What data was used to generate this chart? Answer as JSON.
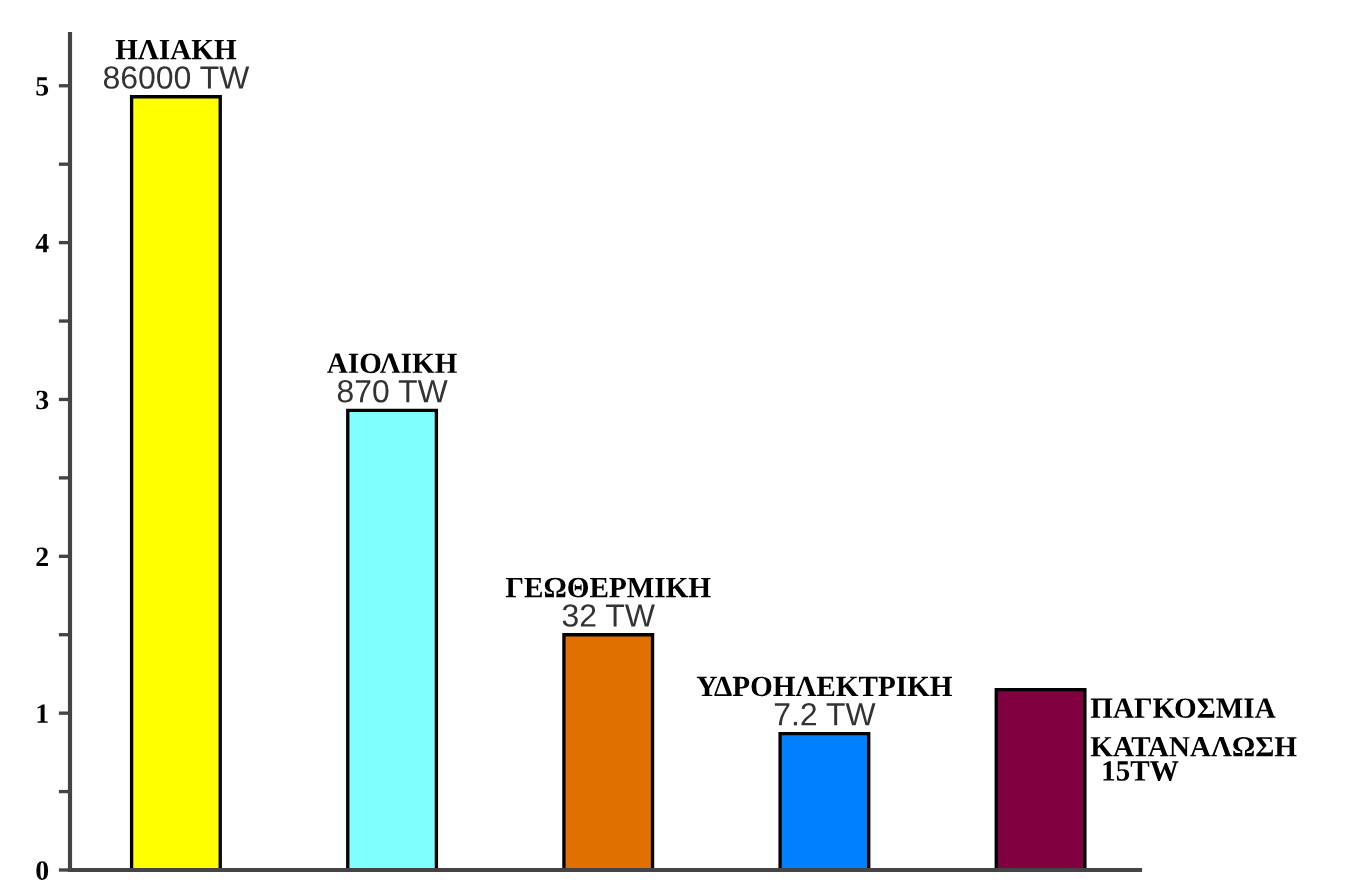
{
  "chart_data": {
    "type": "bar",
    "categories": [
      null,
      null,
      null,
      null,
      null
    ],
    "values": [
      4.93,
      2.93,
      1.5,
      0.87,
      1.15
    ],
    "colors": [
      "#ffff00",
      "#80ffff",
      "#e07000",
      "#0080ff",
      "#800040"
    ],
    "annotations": [
      "ΗΛΙΑΚΗ\n86000 TW",
      "ΑΙΟΛΙΚΗ\n870 TW",
      "ΓΕΩΘΕΡΜΙΚΗ\n32 TW",
      "ΥΔΡΟΗΛΕΚΤΡΙΚΗ\n7.2 TW",
      "ΠΑΓΚΟΣΜΙΑ\nΚΑΤΑΝΑΛΩΣΗ\n15TW"
    ],
    "ylim": [
      0,
      5.33
    ],
    "yticks": [
      0,
      {
        "value": 0.5,
        "label": null
      },
      1,
      {
        "value": 1.5,
        "label": null
      },
      2,
      {
        "value": 2.5,
        "label": null
      },
      3,
      {
        "value": 3.5,
        "label": null
      },
      4,
      {
        "value": 4.5,
        "label": null
      },
      5
    ],
    "grid": false,
    "legend": false
  }
}
